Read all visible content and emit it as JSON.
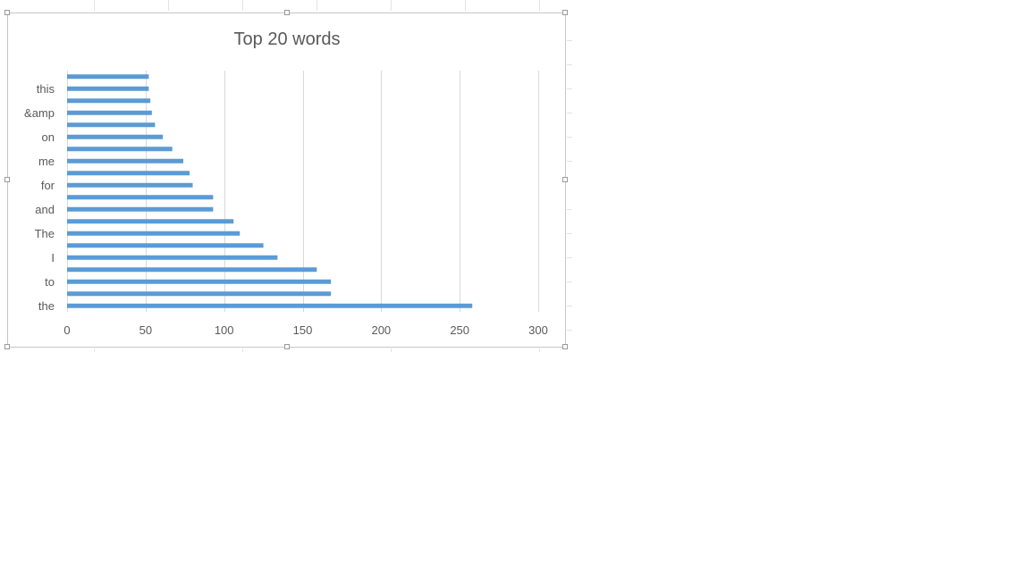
{
  "chart_data": {
    "type": "bar",
    "orientation": "horizontal",
    "title": "Top 20 words",
    "xlabel": "",
    "ylabel": "",
    "xlim": [
      0,
      300
    ],
    "x_ticks": [
      0,
      50,
      100,
      150,
      200,
      250,
      300
    ],
    "grid": true,
    "legend": "none",
    "bar_color": "#5b9bd5",
    "categories": [
      "the",
      "",
      "to",
      "",
      "I",
      "",
      "The",
      "",
      "and",
      "",
      "for",
      "",
      "me",
      "",
      "on",
      "",
      "&amp",
      "",
      "this",
      ""
    ],
    "values": [
      258,
      168,
      168,
      159,
      134,
      125,
      110,
      106,
      93,
      93,
      80,
      78,
      74,
      67,
      61,
      56,
      54,
      53,
      52,
      52
    ]
  }
}
